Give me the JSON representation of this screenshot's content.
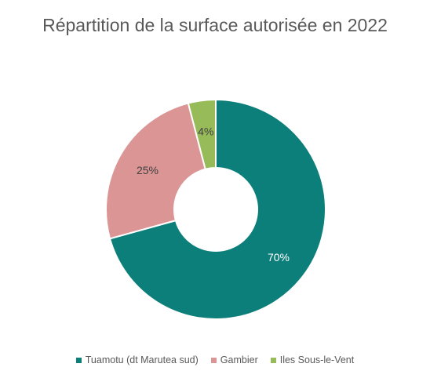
{
  "chart_data": {
    "type": "pie",
    "variant": "donut",
    "title": "Répartition de la surface autorisée en 2022",
    "categories": [
      "Tuamotu (dt Marutea sud)",
      "Gambier",
      "Iles Sous-le-Vent"
    ],
    "values": [
      70,
      25,
      4
    ],
    "data_labels": [
      "70%",
      "25%",
      "4%"
    ],
    "colors": [
      "#0d7f7a",
      "#db9595",
      "#98bb5a"
    ],
    "label_colors": [
      "#ffffff",
      "#404040",
      "#404040"
    ],
    "legend_position": "bottom"
  }
}
